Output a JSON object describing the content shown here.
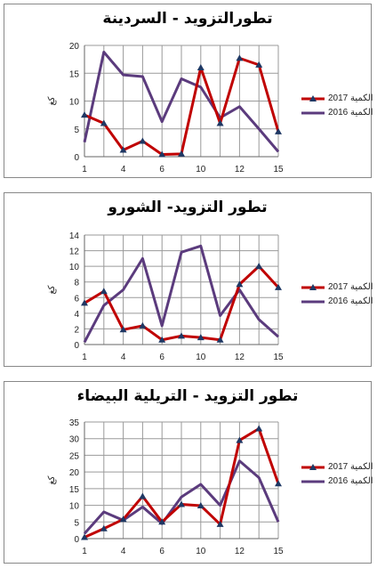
{
  "colors": {
    "series_2017": "#c00000",
    "series_2016": "#5b3b7d",
    "marker": "#1f3864"
  },
  "chart_data": [
    {
      "type": "line",
      "title": "تطورالتزويد - السردينة",
      "ylabel": "كغ",
      "ylim": [
        0,
        20
      ],
      "yticks": [
        "0",
        "5",
        "10",
        "15",
        "20"
      ],
      "xticks": [
        "1",
        "4",
        "6",
        "10",
        "12",
        "15"
      ],
      "x": [
        1,
        2,
        3,
        4,
        5,
        6,
        7,
        8,
        9,
        10,
        11,
        12,
        13,
        14,
        15
      ],
      "series": [
        {
          "name": "2017 الكمية",
          "values": [
            7.5,
            6,
            1.2,
            2.8,
            0.4,
            0.5,
            16,
            6,
            17.7,
            16.5,
            4.5
          ],
          "x": [
            1,
            3,
            4,
            5,
            6,
            7,
            8,
            9,
            10,
            11,
            12
          ]
        },
        {
          "name": "2016 الكمية",
          "values": [
            2.6,
            18.8,
            14.7,
            14.4,
            6.3,
            14,
            12.5,
            7,
            9,
            5,
            0.9
          ],
          "x": [
            1,
            2,
            3,
            4,
            5,
            6,
            7,
            8,
            9,
            10,
            11
          ]
        }
      ]
    },
    {
      "type": "line",
      "title": "تطور التزويد- الشورو",
      "ylabel": "كغ",
      "ylim": [
        0,
        14
      ],
      "yticks": [
        "0",
        "2",
        "4",
        "6",
        "8",
        "10",
        "12",
        "14"
      ],
      "xticks": [
        "1",
        "4",
        "6",
        "10",
        "12",
        "15"
      ],
      "series": [
        {
          "name": "2017 الكمية",
          "values": [
            5.3,
            6.8,
            1.9,
            2.4,
            0.6,
            1.1,
            0.9,
            0.6,
            7.7,
            10,
            7.3
          ],
          "x": [
            1,
            3,
            4,
            5,
            6,
            7,
            8,
            9,
            10,
            11,
            12
          ]
        },
        {
          "name": "2016 الكمية",
          "values": [
            0.3,
            5,
            7,
            11,
            2.4,
            11.8,
            12.6,
            3.7,
            7,
            3.2,
            1
          ],
          "x": [
            1,
            2,
            3,
            4,
            5,
            6,
            7,
            8,
            9,
            10,
            11
          ]
        }
      ]
    },
    {
      "type": "line",
      "title": "تطور التزويد - التريلية البيضاء",
      "ylabel": "كغ",
      "ylim": [
        0,
        35
      ],
      "yticks": [
        "0",
        "5",
        "10",
        "15",
        "20",
        "25",
        "30",
        "35"
      ],
      "xticks": [
        "1",
        "4",
        "6",
        "10",
        "12",
        "15"
      ],
      "series": [
        {
          "name": "2017 الكمية",
          "values": [
            0.4,
            3,
            5.8,
            12.7,
            5,
            10.3,
            9.9,
            4.3,
            29.5,
            33,
            16.5
          ],
          "x": [
            1,
            2,
            3,
            4,
            5,
            6,
            7,
            8,
            9,
            10,
            11
          ]
        },
        {
          "name": "2016 الكمية",
          "values": [
            1.5,
            8,
            5.5,
            9.5,
            4.5,
            12.5,
            16.3,
            10,
            23.3,
            18.3,
            5
          ],
          "x": [
            1,
            2,
            3,
            4,
            5,
            6,
            7,
            8,
            9,
            10,
            11
          ]
        }
      ]
    }
  ]
}
